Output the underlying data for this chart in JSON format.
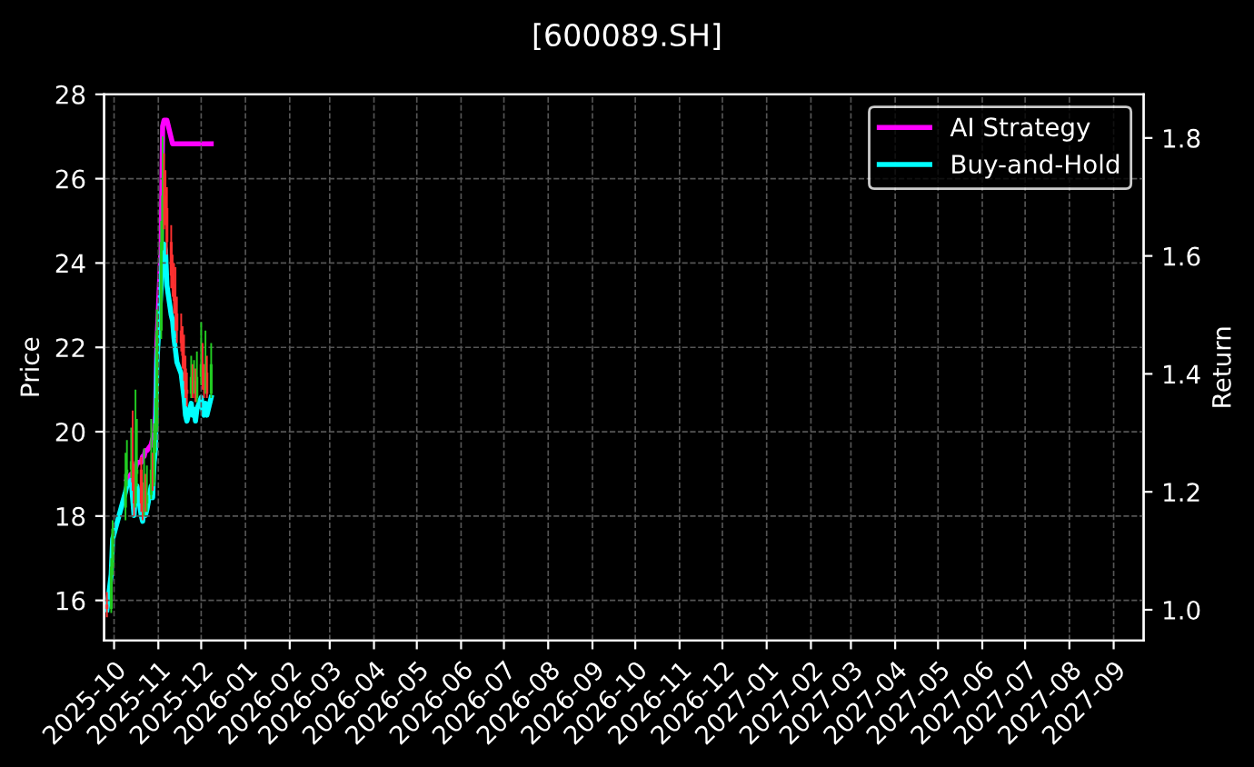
{
  "chart_data": {
    "type": "candlestick",
    "title": "[600089.SH]",
    "ylabel": "Price",
    "y2label": "Return",
    "x": [
      "2025-09-26",
      "2025-09-29",
      "2025-09-30",
      "2025-10-09",
      "2025-10-10",
      "2025-10-13",
      "2025-10-14",
      "2025-10-15",
      "2025-10-16",
      "2025-10-17",
      "2025-10-20",
      "2025-10-21",
      "2025-10-22",
      "2025-10-23",
      "2025-10-24",
      "2025-10-27",
      "2025-10-28",
      "2025-10-29",
      "2025-10-30",
      "2025-10-31",
      "2025-11-03",
      "2025-11-04",
      "2025-11-05",
      "2025-11-06",
      "2025-11-07",
      "2025-11-10",
      "2025-11-11",
      "2025-11-12",
      "2025-11-13",
      "2025-11-14",
      "2025-11-17",
      "2025-11-18",
      "2025-11-19",
      "2025-11-20",
      "2025-11-21",
      "2025-11-24",
      "2025-11-25",
      "2025-11-26",
      "2025-11-27",
      "2025-11-28",
      "2025-12-01",
      "2025-12-02",
      "2025-12-03",
      "2025-12-04",
      "2025-12-05",
      "2025-12-08"
    ],
    "ohlc": [
      [
        15.9,
        16.2,
        15.6,
        15.8
      ],
      [
        15.8,
        17.0,
        15.7,
        16.8
      ],
      [
        16.8,
        17.9,
        16.6,
        17.7
      ],
      [
        18.2,
        19.5,
        17.9,
        19.0
      ],
      [
        19.0,
        19.8,
        18.7,
        19.1
      ],
      [
        19.1,
        20.1,
        18.9,
        19.3
      ],
      [
        19.3,
        20.5,
        18.6,
        18.8
      ],
      [
        18.8,
        19.2,
        18.0,
        18.3
      ],
      [
        18.3,
        21.0,
        18.2,
        19.0
      ],
      [
        19.0,
        20.3,
        18.7,
        19.1
      ],
      [
        19.1,
        19.4,
        18.1,
        18.3
      ],
      [
        18.3,
        18.8,
        17.9,
        18.2
      ],
      [
        18.2,
        19.6,
        18.0,
        18.6
      ],
      [
        18.6,
        19.0,
        18.1,
        18.3
      ],
      [
        18.3,
        19.2,
        18.1,
        18.5
      ],
      [
        18.5,
        20.3,
        18.4,
        19.1
      ],
      [
        19.1,
        19.5,
        18.6,
        18.8
      ],
      [
        18.8,
        20.2,
        18.7,
        19.8
      ],
      [
        19.8,
        20.8,
        19.5,
        20.1
      ],
      [
        20.1,
        22.9,
        20.0,
        22.4
      ],
      [
        22.4,
        25.0,
        22.2,
        24.5
      ],
      [
        24.5,
        27.0,
        24.3,
        25.6
      ],
      [
        25.6,
        26.6,
        24.8,
        25.4
      ],
      [
        25.4,
        26.2,
        24.9,
        25.3
      ],
      [
        25.3,
        25.8,
        24.2,
        24.5
      ],
      [
        24.5,
        24.9,
        23.4,
        23.7
      ],
      [
        23.7,
        24.2,
        23.2,
        23.5
      ],
      [
        23.5,
        24.0,
        22.8,
        23.1
      ],
      [
        23.1,
        23.9,
        22.4,
        22.8
      ],
      [
        22.8,
        23.2,
        22.1,
        22.4
      ],
      [
        22.4,
        22.8,
        21.9,
        22.1
      ],
      [
        22.1,
        22.5,
        21.5,
        21.8
      ],
      [
        21.8,
        22.3,
        21.2,
        21.5
      ],
      [
        21.5,
        21.8,
        20.8,
        21.0
      ],
      [
        21.0,
        21.4,
        20.6,
        20.9
      ],
      [
        20.9,
        21.8,
        20.8,
        21.3
      ],
      [
        21.3,
        21.6,
        20.8,
        21.0
      ],
      [
        21.0,
        21.7,
        20.9,
        21.2
      ],
      [
        21.2,
        21.5,
        20.7,
        20.8
      ],
      [
        20.8,
        21.9,
        20.7,
        21.3
      ],
      [
        21.3,
        22.6,
        21.1,
        21.6
      ],
      [
        21.6,
        22.1,
        21.0,
        21.1
      ],
      [
        21.1,
        21.6,
        20.8,
        21.0
      ],
      [
        21.0,
        22.4,
        20.9,
        21.4
      ],
      [
        21.4,
        21.8,
        20.8,
        20.9
      ],
      [
        20.9,
        22.1,
        20.8,
        21.6
      ]
    ],
    "colors": [
      "#ff3030",
      "#22cc22",
      "#22cc22",
      "#22cc22",
      "#22cc22",
      "#22cc22",
      "#ff3030",
      "#ff3030",
      "#22cc22",
      "#22cc22",
      "#ff3030",
      "#ff3030",
      "#22cc22",
      "#ff3030",
      "#22cc22",
      "#22cc22",
      "#ff3030",
      "#22cc22",
      "#22cc22",
      "#22cc22",
      "#22cc22",
      "#22cc22",
      "#ff3030",
      "#ff3030",
      "#ff3030",
      "#ff3030",
      "#ff3030",
      "#ff3030",
      "#ff3030",
      "#ff3030",
      "#ff3030",
      "#ff3030",
      "#ff3030",
      "#ff3030",
      "#ff3030",
      "#22cc22",
      "#ff3030",
      "#22cc22",
      "#ff3030",
      "#22cc22",
      "#22cc22",
      "#ff3030",
      "#ff3030",
      "#22cc22",
      "#ff3030",
      "#22cc22"
    ],
    "series": [
      {
        "type": "line",
        "name": "AI Strategy",
        "color": "#ff00ff",
        "axis": "y2",
        "values": [
          null,
          null,
          null,
          null,
          1.22,
          1.23,
          1.23,
          1.24,
          1.24,
          1.25,
          1.25,
          1.26,
          1.26,
          1.27,
          1.27,
          1.28,
          1.29,
          1.29,
          1.33,
          1.45,
          1.62,
          1.82,
          1.83,
          1.83,
          1.83,
          1.8,
          1.79,
          1.79,
          1.79,
          1.79,
          1.79,
          1.79,
          1.79,
          1.79,
          1.79,
          1.79,
          1.79,
          1.79,
          1.79,
          1.79,
          1.79,
          1.79,
          1.79,
          1.79,
          1.79,
          1.79
        ]
      },
      {
        "type": "line",
        "name": "Buy-and-Hold",
        "color": "#00ffff",
        "axis": "y2",
        "values": [
          1.0,
          1.06,
          1.12,
          1.2,
          1.21,
          1.22,
          1.19,
          1.16,
          1.2,
          1.21,
          1.16,
          1.15,
          1.18,
          1.16,
          1.17,
          1.21,
          1.19,
          1.25,
          1.27,
          1.42,
          1.55,
          1.62,
          1.62,
          1.61,
          1.55,
          1.5,
          1.49,
          1.46,
          1.44,
          1.42,
          1.4,
          1.38,
          1.36,
          1.33,
          1.32,
          1.35,
          1.33,
          1.34,
          1.32,
          1.34,
          1.36,
          1.34,
          1.33,
          1.35,
          1.33,
          1.36
        ]
      }
    ],
    "xlim": [
      "2025-09-24",
      "2027-09-22"
    ],
    "xticks": [
      "2025-10",
      "2025-11",
      "2025-12",
      "2026-01",
      "2026-02",
      "2026-03",
      "2026-04",
      "2026-05",
      "2026-06",
      "2026-07",
      "2026-08",
      "2026-09",
      "2026-10",
      "2026-11",
      "2026-12",
      "2027-01",
      "2027-02",
      "2027-03",
      "2027-04",
      "2027-05",
      "2027-06",
      "2027-07",
      "2027-08",
      "2027-09"
    ],
    "ylim": [
      15.05,
      28
    ],
    "yticks": [
      16,
      18,
      20,
      22,
      24,
      26,
      28
    ],
    "y2lim": [
      0.948,
      1.874
    ],
    "y2ticks": [
      {
        "value": 1.0,
        "label": "1.0"
      },
      1.2,
      1.4,
      1.6,
      1.8
    ],
    "grid": true,
    "legend": "top right",
    "line_style": "solid",
    "marker": "none"
  }
}
